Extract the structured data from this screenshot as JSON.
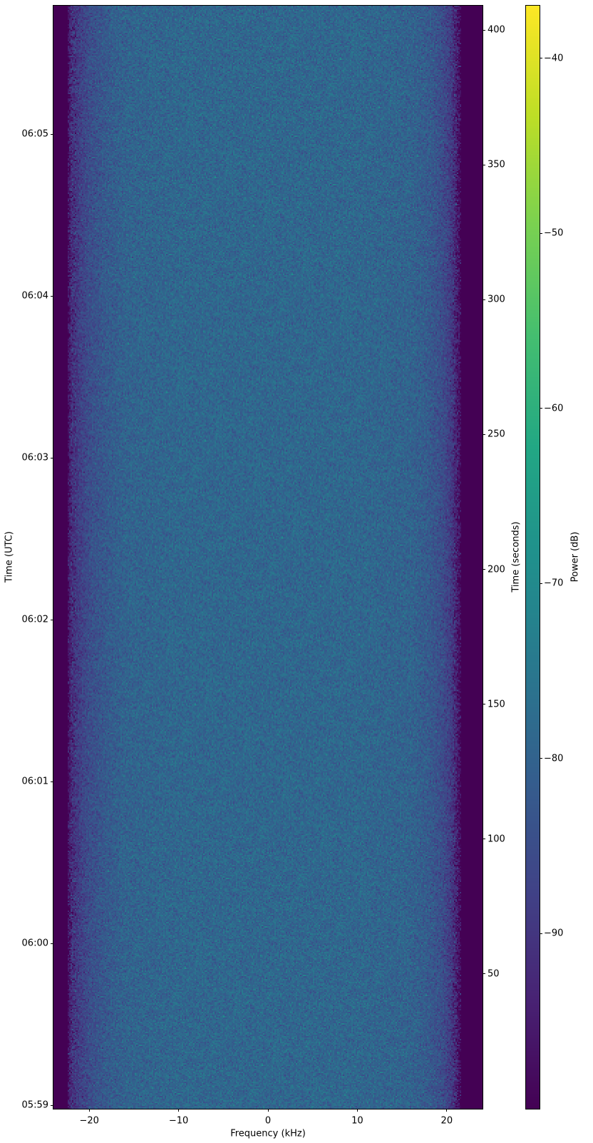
{
  "chart_data": {
    "type": "heatmap",
    "title": "",
    "xlabel": "Frequency (kHz)",
    "ylabel_left": "Time (UTC)",
    "ylabel_right": "Time (seconds)",
    "colorbar_label": "Power (dB)",
    "colormap": "viridis",
    "xlim": [
      -24,
      24
    ],
    "ylim_seconds": [
      0,
      409
    ],
    "utc_range": [
      "05:58:58.7",
      "06:05:47.6"
    ],
    "clim": [
      -100,
      -37
    ],
    "x_ticks": [
      -20,
      -10,
      0,
      10,
      20
    ],
    "x_tick_labels": [
      "−20",
      "−10",
      "0",
      "10",
      "20"
    ],
    "right_ticks": [
      50,
      100,
      150,
      200,
      250,
      300,
      350,
      400
    ],
    "right_tick_labels": [
      "50",
      "100",
      "150",
      "200",
      "250",
      "300",
      "350",
      "400"
    ],
    "left_ticks": [
      {
        "label": "05:59",
        "seconds": 1.3
      },
      {
        "label": "06:00",
        "seconds": 61.3
      },
      {
        "label": "06:01",
        "seconds": 121.3
      },
      {
        "label": "06:02",
        "seconds": 181.3
      },
      {
        "label": "06:03",
        "seconds": 241.3
      },
      {
        "label": "06:04",
        "seconds": 301.3
      },
      {
        "label": "06:05",
        "seconds": 361.3
      }
    ],
    "colorbar_ticks": [
      -40,
      -50,
      -60,
      -70,
      -80,
      -90
    ],
    "colorbar_tick_labels": [
      "−40",
      "−50",
      "−60",
      "−70",
      "−80",
      "−90"
    ],
    "mean_power_profile": {
      "frequency_khz": [
        -24,
        -22.5,
        -22,
        -21,
        -20,
        -18,
        -16,
        -10,
        0,
        10,
        16,
        18,
        19.5,
        20.5,
        21.3,
        21.6,
        24
      ],
      "power_db": [
        -100,
        -100,
        -92,
        -88,
        -85,
        -82,
        -80,
        -79,
        -79,
        -79,
        -80,
        -82,
        -85,
        -89,
        -96,
        -100,
        -100
      ]
    },
    "noise_std_db": 2.5,
    "grid": false
  }
}
